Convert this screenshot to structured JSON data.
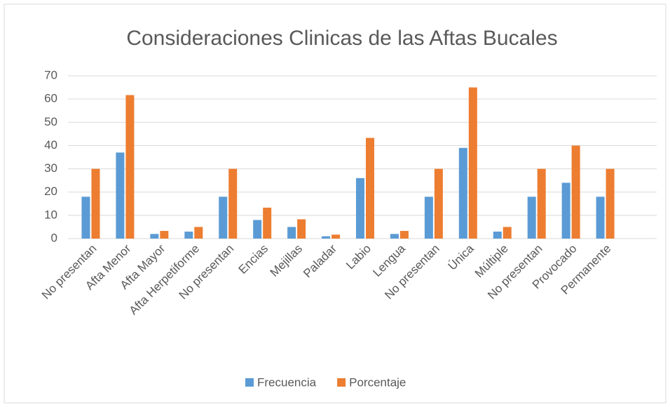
{
  "chart_data": {
    "type": "bar",
    "title": "Consideraciones Clinicas de las Aftas Bucales",
    "categories": [
      "No presentan",
      "Afta Menor",
      "Afta Mayor",
      "Afta Herpetiforme",
      "No presentan",
      "Encias",
      "Mejillas",
      "Paladar",
      "Labio",
      "Lengua",
      "No presentan",
      "Única",
      "Múltiple",
      "No presentan",
      "Provocado",
      "Permanente"
    ],
    "series": [
      {
        "name": "Frecuencia",
        "color": "#5b9bd5",
        "values": [
          18,
          37,
          2,
          3,
          18,
          8,
          5,
          1,
          26,
          2,
          18,
          39,
          3,
          18,
          24,
          18
        ]
      },
      {
        "name": "Porcentaje",
        "color": "#ed7d31",
        "values": [
          30,
          61.7,
          3.3,
          5,
          30,
          13.3,
          8.3,
          1.7,
          43.3,
          3.3,
          30,
          65,
          5,
          30,
          40,
          30
        ]
      }
    ],
    "ylim": [
      0,
      70
    ],
    "yticks": [
      0,
      10,
      20,
      30,
      40,
      50,
      60,
      70
    ],
    "grid": true,
    "legend": "bottom"
  }
}
